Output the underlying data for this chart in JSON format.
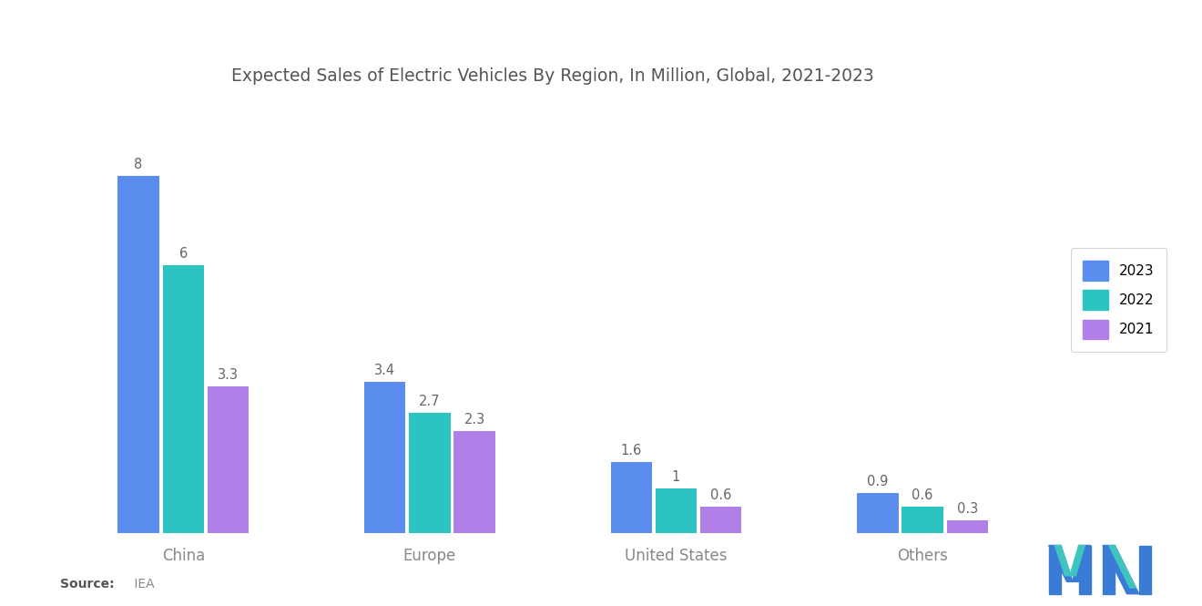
{
  "title": "Expected Sales of Electric Vehicles By Region, In Million, Global, 2021-2023",
  "categories": [
    "China",
    "Europe",
    "United States",
    "Others"
  ],
  "series": {
    "2023": [
      8,
      3.4,
      1.6,
      0.9
    ],
    "2022": [
      6,
      2.7,
      1.0,
      0.6
    ],
    "2021": [
      3.3,
      2.3,
      0.6,
      0.3
    ]
  },
  "colors": {
    "2023": "#5B8DEF",
    "2022": "#2BC4C0",
    "2021": "#B07FE8"
  },
  "legend_labels": [
    "2023",
    "2022",
    "2021"
  ],
  "bar_width": 0.2,
  "ylim": [
    0,
    9.5
  ],
  "title_color": "#555555",
  "label_color": "#666666",
  "tick_color": "#888888",
  "background_color": "#ffffff",
  "logo_color1": "#3a7bd5",
  "logo_color2": "#40c4c0"
}
